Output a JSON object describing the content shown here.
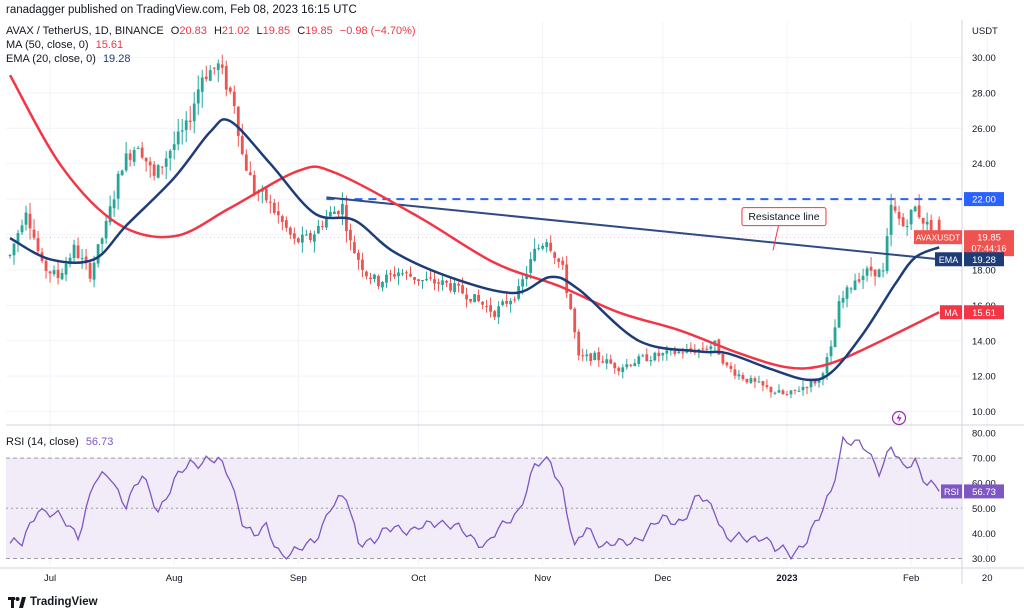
{
  "header": {
    "published": "ranadagger published on TradingView.com, Feb 08, 2023 16:15 UTC",
    "symbol": "AVAX / TetherUS, 1D, BINANCE",
    "ohlc": [
      {
        "key": "O",
        "value": "20.83"
      },
      {
        "key": "H",
        "value": "21.02"
      },
      {
        "key": "L",
        "value": "19.85"
      },
      {
        "key": "C",
        "value": "19.85"
      }
    ],
    "change": "−0.98 (−4.70%)",
    "ma_label": "MA (50, close, 0)",
    "ma_value": "15.61",
    "ema_label": "EMA (20, close, 0)",
    "ema_value": "19.28",
    "rsi_label": "RSI (14, close)",
    "rsi_value": "56.73"
  },
  "footer": {
    "logo": "TradingView"
  },
  "colors": {
    "up": "#26a69a",
    "down": "#ef5350",
    "ma": "#f23645",
    "ema": "#1e3c78",
    "resistance": "#2962ff",
    "trendline": "#2f4a85",
    "rsi": "#7e57c2",
    "rsi_band": "#ede7f6"
  },
  "chart_data": [
    {
      "type": "candlestick",
      "title": "AVAX / TetherUS, 1D, BINANCE",
      "y_unit": "USDT",
      "ylim": [
        9.3,
        32.0
      ],
      "y_ticks": [
        "30.00",
        "28.00",
        "26.00",
        "24.00",
        "22.00",
        "20.00",
        "18.00",
        "16.00",
        "14.00",
        "12.00",
        "10.00"
      ],
      "x_ticks": [
        "Jul",
        "Aug",
        "Sep",
        "Oct",
        "Nov",
        "Dec",
        "2023",
        "Feb",
        "20"
      ],
      "start_date": "2022-06-21",
      "ohlc_anchors": [
        [
          "2022-06-21",
          18.8
        ],
        [
          "2022-06-25",
          21.5
        ],
        [
          "2022-06-29",
          18.2
        ],
        [
          "2022-07-03",
          17.6
        ],
        [
          "2022-07-07",
          19.2
        ],
        [
          "2022-07-11",
          17.8
        ],
        [
          "2022-07-15",
          20.5
        ],
        [
          "2022-07-19",
          24.0
        ],
        [
          "2022-07-23",
          25.2
        ],
        [
          "2022-07-27",
          23.2
        ],
        [
          "2022-07-31",
          24.8
        ],
        [
          "2022-08-04",
          26.0
        ],
        [
          "2022-08-08",
          29.0
        ],
        [
          "2022-08-12",
          29.5
        ],
        [
          "2022-08-16",
          27.5
        ],
        [
          "2022-08-18",
          24.5
        ],
        [
          "2022-08-21",
          22.5
        ],
        [
          "2022-08-24",
          22.0
        ],
        [
          "2022-08-27",
          21.0
        ],
        [
          "2022-08-31",
          19.6
        ],
        [
          "2022-09-04",
          19.8
        ],
        [
          "2022-09-08",
          21.0
        ],
        [
          "2022-09-12",
          21.6
        ],
        [
          "2022-09-14",
          19.5
        ],
        [
          "2022-09-18",
          17.8
        ],
        [
          "2022-09-21",
          17.3
        ],
        [
          "2022-09-26",
          17.9
        ],
        [
          "2022-10-02",
          17.4
        ],
        [
          "2022-10-08",
          17.2
        ],
        [
          "2022-10-14",
          16.5
        ],
        [
          "2022-10-20",
          15.6
        ],
        [
          "2022-10-26",
          16.8
        ],
        [
          "2022-10-30",
          19.0
        ],
        [
          "2022-11-02",
          19.8
        ],
        [
          "2022-11-06",
          18.0
        ],
        [
          "2022-11-08",
          15.8
        ],
        [
          "2022-11-10",
          13.0
        ],
        [
          "2022-11-14",
          13.1
        ],
        [
          "2022-11-20",
          12.5
        ],
        [
          "2022-11-26",
          13.0
        ],
        [
          "2022-12-03",
          13.3
        ],
        [
          "2022-12-10",
          13.5
        ],
        [
          "2022-12-14",
          13.8
        ],
        [
          "2022-12-17",
          12.5
        ],
        [
          "2022-12-22",
          11.8
        ],
        [
          "2022-12-28",
          11.2
        ],
        [
          "2023-01-01",
          10.9
        ],
        [
          "2023-01-05",
          11.4
        ],
        [
          "2023-01-09",
          11.8
        ],
        [
          "2023-01-12",
          13.5
        ],
        [
          "2023-01-14",
          16.0
        ],
        [
          "2023-01-18",
          17.5
        ],
        [
          "2023-01-22",
          18.0
        ],
        [
          "2023-01-25",
          17.8
        ],
        [
          "2023-01-27",
          21.5
        ],
        [
          "2023-01-30",
          20.5
        ],
        [
          "2023-02-02",
          21.5
        ],
        [
          "2023-02-05",
          20.5
        ],
        [
          "2023-02-08",
          19.85
        ]
      ],
      "ma50_anchors": [
        [
          "2022-06-21",
          29.0
        ],
        [
          "2022-07-04",
          23.8
        ],
        [
          "2022-07-18",
          20.6
        ],
        [
          "2022-08-01",
          19.9
        ],
        [
          "2022-08-15",
          21.5
        ],
        [
          "2022-09-01",
          23.6
        ],
        [
          "2022-09-10",
          23.5
        ],
        [
          "2022-10-01",
          21.0
        ],
        [
          "2022-10-20",
          18.4
        ],
        [
          "2022-11-05",
          17.1
        ],
        [
          "2022-11-20",
          15.6
        ],
        [
          "2022-12-05",
          14.6
        ],
        [
          "2022-12-20",
          13.3
        ],
        [
          "2023-01-01",
          12.5
        ],
        [
          "2023-01-10",
          12.6
        ],
        [
          "2023-01-20",
          13.5
        ],
        [
          "2023-02-08",
          15.61
        ]
      ],
      "ema20_anchors": [
        [
          "2022-06-21",
          19.8
        ],
        [
          "2022-07-01",
          18.6
        ],
        [
          "2022-07-12",
          18.6
        ],
        [
          "2022-07-20",
          20.5
        ],
        [
          "2022-08-01",
          23.2
        ],
        [
          "2022-08-10",
          25.8
        ],
        [
          "2022-08-15",
          26.4
        ],
        [
          "2022-08-25",
          24.0
        ],
        [
          "2022-09-05",
          21.2
        ],
        [
          "2022-09-15",
          20.8
        ],
        [
          "2022-09-25",
          19.0
        ],
        [
          "2022-10-10",
          17.5
        ],
        [
          "2022-10-25",
          16.7
        ],
        [
          "2022-11-03",
          17.6
        ],
        [
          "2022-11-10",
          16.9
        ],
        [
          "2022-11-25",
          14.0
        ],
        [
          "2022-12-10",
          13.4
        ],
        [
          "2022-12-17",
          13.3
        ],
        [
          "2022-12-28",
          12.4
        ],
        [
          "2023-01-06",
          11.8
        ],
        [
          "2023-01-12",
          12.2
        ],
        [
          "2023-01-20",
          14.4
        ],
        [
          "2023-01-28",
          17.2
        ],
        [
          "2023-02-02",
          18.7
        ],
        [
          "2023-02-08",
          19.28
        ]
      ],
      "horizontal_line": {
        "value": 22.0,
        "label": "22.00",
        "style": "dashed"
      },
      "trend_line": {
        "from": [
          "2022-09-08",
          22.1
        ],
        "to": [
          "2023-02-08",
          18.6
        ]
      },
      "annotation": {
        "text": "Resistance line",
        "date": "2022-12-30",
        "value": 19.6
      },
      "price_labels": [
        {
          "name": "AVAXUSDT",
          "value": "19.85",
          "countdown": "07:44:16",
          "y": 19.85
        },
        {
          "name": "EMA",
          "value": "19.28",
          "y": 19.28
        },
        {
          "name": "MA",
          "value": "15.61",
          "y": 15.61
        }
      ],
      "last": {
        "open": 20.83,
        "high": 21.02,
        "low": 19.85,
        "close": 19.85
      }
    },
    {
      "type": "line",
      "title": "RSI (14, close)",
      "ylim": [
        27,
        82
      ],
      "y_ticks": [
        "80.00",
        "70.00",
        "60.00",
        "50.00",
        "40.00",
        "30.00"
      ],
      "band": [
        30,
        70
      ],
      "last_label": {
        "name": "RSI",
        "value": "56.73"
      },
      "anchors": [
        [
          "2022-06-21",
          36
        ],
        [
          "2022-06-24",
          35
        ],
        [
          "2022-06-28",
          51
        ],
        [
          "2022-07-03",
          46
        ],
        [
          "2022-07-08",
          40
        ],
        [
          "2022-07-12",
          60
        ],
        [
          "2022-07-16",
          63
        ],
        [
          "2022-07-20",
          52
        ],
        [
          "2022-07-24",
          62
        ],
        [
          "2022-07-28",
          50
        ],
        [
          "2022-08-01",
          60
        ],
        [
          "2022-08-05",
          68
        ],
        [
          "2022-08-09",
          70
        ],
        [
          "2022-08-12",
          68
        ],
        [
          "2022-08-15",
          62
        ],
        [
          "2022-08-18",
          46
        ],
        [
          "2022-08-21",
          38
        ],
        [
          "2022-08-24",
          42
        ],
        [
          "2022-08-28",
          32
        ],
        [
          "2022-09-01",
          32
        ],
        [
          "2022-09-05",
          38
        ],
        [
          "2022-09-09",
          50
        ],
        [
          "2022-09-13",
          54
        ],
        [
          "2022-09-16",
          38
        ],
        [
          "2022-09-20",
          36
        ],
        [
          "2022-09-25",
          44
        ],
        [
          "2022-09-30",
          40
        ],
        [
          "2022-10-06",
          46
        ],
        [
          "2022-10-12",
          40
        ],
        [
          "2022-10-18",
          36
        ],
        [
          "2022-10-22",
          42
        ],
        [
          "2022-10-26",
          50
        ],
        [
          "2022-10-30",
          66
        ],
        [
          "2022-11-03",
          69
        ],
        [
          "2022-11-06",
          58
        ],
        [
          "2022-11-09",
          33
        ],
        [
          "2022-11-12",
          42
        ],
        [
          "2022-11-16",
          36
        ],
        [
          "2022-11-21",
          35
        ],
        [
          "2022-11-26",
          40
        ],
        [
          "2022-12-01",
          45
        ],
        [
          "2022-12-06",
          46
        ],
        [
          "2022-12-10",
          54
        ],
        [
          "2022-12-14",
          50
        ],
        [
          "2022-12-17",
          38
        ],
        [
          "2022-12-21",
          37
        ],
        [
          "2022-12-26",
          40
        ],
        [
          "2022-12-29",
          33
        ],
        [
          "2023-01-02",
          32
        ],
        [
          "2023-01-06",
          38
        ],
        [
          "2023-01-09",
          45
        ],
        [
          "2023-01-12",
          57
        ],
        [
          "2023-01-15",
          78
        ],
        [
          "2023-01-18",
          75
        ],
        [
          "2023-01-21",
          73
        ],
        [
          "2023-01-24",
          66
        ],
        [
          "2023-01-27",
          74
        ],
        [
          "2023-01-30",
          65
        ],
        [
          "2023-02-02",
          70
        ],
        [
          "2023-02-05",
          60
        ],
        [
          "2023-02-08",
          56.73
        ]
      ]
    }
  ]
}
